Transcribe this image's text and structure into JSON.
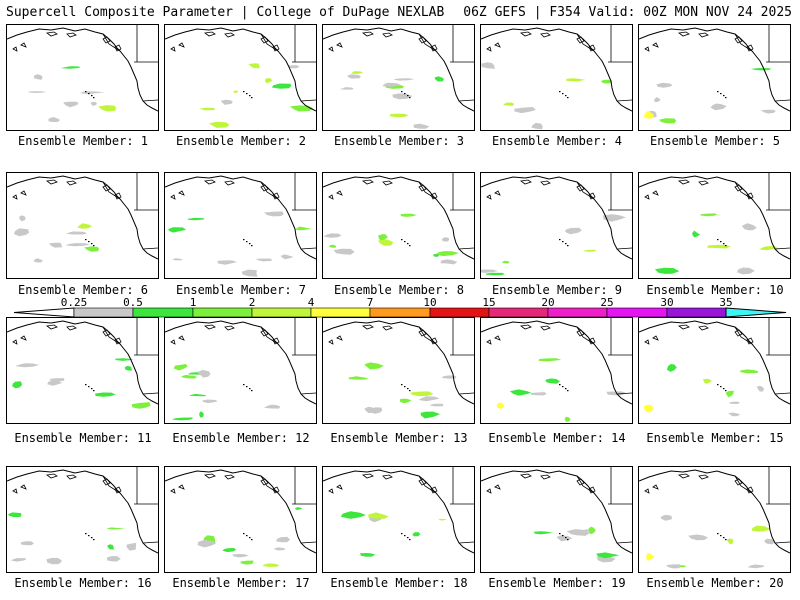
{
  "header": {
    "title_left": "Supercell Composite Parameter | College of DuPage NEXLAB",
    "title_right": "06Z GEFS | F354 Valid: 00Z MON NOV 24 2025"
  },
  "panel_label_prefix": "Ensemble Member: ",
  "members": [
    1,
    2,
    3,
    4,
    5,
    6,
    7,
    8,
    9,
    10,
    11,
    12,
    13,
    14,
    15,
    16,
    17,
    18,
    19,
    20
  ],
  "colorbar": {
    "tick_labels": [
      "0.25",
      "0.5",
      "1",
      "2",
      "4",
      "7",
      "10",
      "15",
      "20",
      "25",
      "30",
      "35"
    ],
    "colors": [
      "#c8c8c8",
      "#3de63d",
      "#7cf03a",
      "#bff53a",
      "#ffff3c",
      "#ff9a1e",
      "#e31414",
      "#e62878",
      "#f01ec8",
      "#e614f5",
      "#9b14dc",
      "#a578dc",
      "#3cf5f5"
    ]
  }
}
